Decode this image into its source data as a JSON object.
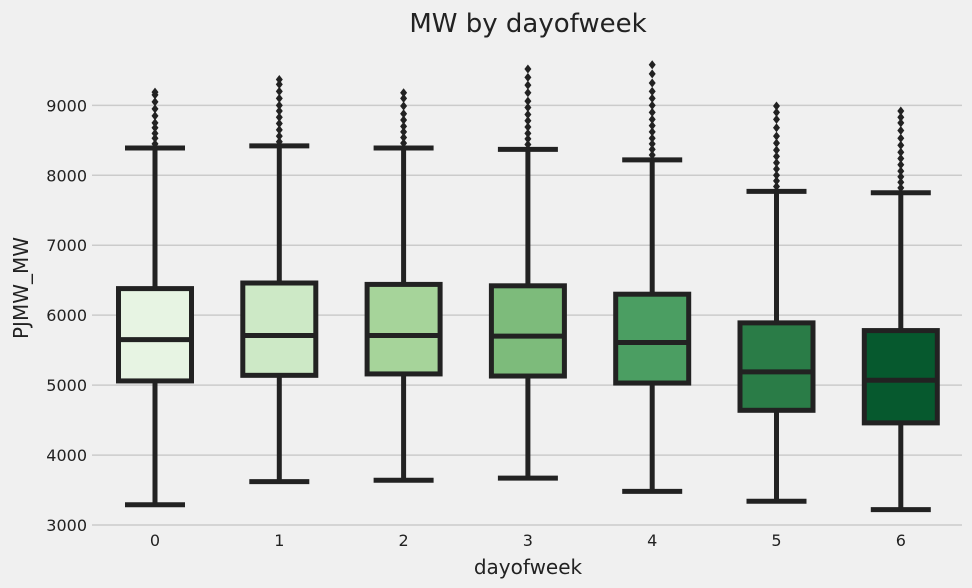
{
  "chart_data": {
    "type": "box",
    "title": "MW by dayofweek",
    "xlabel": "dayofweek",
    "ylabel": "PJMW_MW",
    "categories": [
      "0",
      "1",
      "2",
      "3",
      "4",
      "5",
      "6"
    ],
    "ylim": [
      2900,
      9720
    ],
    "yticks": [
      3000,
      4000,
      5000,
      6000,
      7000,
      8000,
      9000
    ],
    "grid": "horizontal",
    "box_colors": [
      "#e7f4e3",
      "#cde9c6",
      "#a6d49a",
      "#7dbb7b",
      "#4b9e62",
      "#2a7c47",
      "#06592e"
    ],
    "boxes": [
      {
        "whisker_low": 3290,
        "q1": 5060,
        "median": 5650,
        "q3": 6380,
        "whisker_high": 8390,
        "outliers": [
          8450,
          8530,
          8600,
          8680,
          8750,
          8850,
          8950,
          9050,
          9150,
          9190
        ]
      },
      {
        "whisker_low": 3620,
        "q1": 5140,
        "median": 5710,
        "q3": 6460,
        "whisker_high": 8420,
        "outliers": [
          8480,
          8560,
          8650,
          8740,
          8830,
          8920,
          9000,
          9100,
          9200,
          9300,
          9370
        ]
      },
      {
        "whisker_low": 3640,
        "q1": 5160,
        "median": 5710,
        "q3": 6440,
        "whisker_high": 8390,
        "outliers": [
          8460,
          8540,
          8620,
          8700,
          8790,
          8880,
          8990,
          9100,
          9180
        ]
      },
      {
        "whisker_low": 3670,
        "q1": 5130,
        "median": 5700,
        "q3": 6420,
        "whisker_high": 8370,
        "outliers": [
          8440,
          8520,
          8600,
          8690,
          8780,
          8870,
          8970,
          9060,
          9180,
          9290,
          9400,
          9520
        ]
      },
      {
        "whisker_low": 3480,
        "q1": 5030,
        "median": 5610,
        "q3": 6300,
        "whisker_high": 8220,
        "outliers": [
          8290,
          8370,
          8450,
          8530,
          8620,
          8710,
          8800,
          8900,
          9000,
          9100,
          9200,
          9320,
          9450,
          9580
        ]
      },
      {
        "whisker_low": 3340,
        "q1": 4640,
        "median": 5190,
        "q3": 5890,
        "whisker_high": 7770,
        "outliers": [
          7840,
          7920,
          8000,
          8090,
          8180,
          8270,
          8360,
          8460,
          8560,
          8680,
          8800,
          8900,
          8990
        ]
      },
      {
        "whisker_low": 3220,
        "q1": 4460,
        "median": 5070,
        "q3": 5780,
        "whisker_high": 7750,
        "outliers": [
          7820,
          7900,
          7980,
          8060,
          8150,
          8240,
          8330,
          8430,
          8530,
          8640,
          8750,
          8830,
          8920
        ]
      }
    ]
  }
}
